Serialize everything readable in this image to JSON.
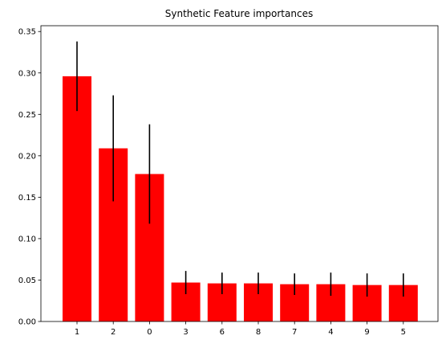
{
  "chart_data": {
    "type": "bar",
    "title": "Synthetic Feature importances",
    "xlabel": "",
    "ylabel": "",
    "categories": [
      "1",
      "2",
      "0",
      "3",
      "6",
      "8",
      "7",
      "4",
      "9",
      "5"
    ],
    "values": [
      0.296,
      0.209,
      0.178,
      0.047,
      0.046,
      0.046,
      0.045,
      0.045,
      0.044,
      0.044
    ],
    "errors": [
      0.042,
      0.064,
      0.06,
      0.014,
      0.013,
      0.013,
      0.013,
      0.014,
      0.014,
      0.014
    ],
    "ylim": [
      0,
      0.357
    ],
    "yticks": [
      "0.00",
      "0.05",
      "0.10",
      "0.15",
      "0.20",
      "0.25",
      "0.30",
      "0.35"
    ],
    "bar_color": "#ff0000",
    "error_color": "#000000",
    "grid": false,
    "legend": "none"
  }
}
